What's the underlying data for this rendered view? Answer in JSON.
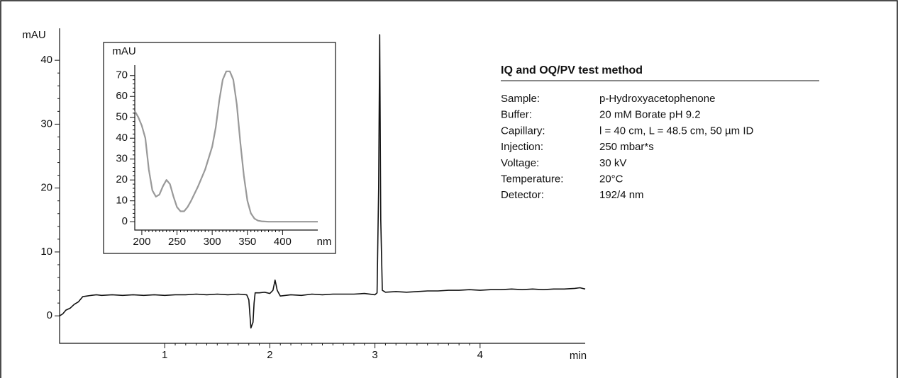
{
  "chart_data": [
    {
      "type": "line",
      "xaxis_label": "min",
      "yaxis_label": "mAU",
      "xlim": [
        0,
        5
      ],
      "xticks": [
        1,
        2,
        3,
        4
      ],
      "ylim": [
        -4.3,
        45
      ],
      "yticks": [
        0,
        10,
        20,
        30,
        40
      ],
      "series": [
        {
          "color": "#111111",
          "x": [
            0,
            0.03,
            0.06,
            0.1,
            0.14,
            0.18,
            0.22,
            0.26,
            0.3,
            0.35,
            0.4,
            0.5,
            0.6,
            0.7,
            0.8,
            0.9,
            1.0,
            1.1,
            1.2,
            1.3,
            1.4,
            1.5,
            1.6,
            1.7,
            1.78,
            1.8,
            1.82,
            1.84,
            1.85,
            1.86,
            1.9,
            1.95,
            2.0,
            2.03,
            2.05,
            2.07,
            2.1,
            2.2,
            2.3,
            2.4,
            2.5,
            2.6,
            2.7,
            2.8,
            2.9,
            3.0,
            3.02,
            3.035,
            3.045,
            3.055,
            3.07,
            3.1,
            3.2,
            3.3,
            3.4,
            3.5,
            3.6,
            3.7,
            3.8,
            3.9,
            4.0,
            4.1,
            4.2,
            4.3,
            4.4,
            4.5,
            4.6,
            4.7,
            4.8,
            4.9,
            4.95,
            5.0
          ],
          "values": [
            0,
            0.3,
            0.9,
            1.2,
            1.8,
            2.2,
            3.0,
            3.1,
            3.2,
            3.3,
            3.2,
            3.3,
            3.2,
            3.3,
            3.2,
            3.3,
            3.2,
            3.3,
            3.3,
            3.4,
            3.3,
            3.4,
            3.3,
            3.4,
            3.3,
            2.5,
            -1.9,
            -1.0,
            2.0,
            3.6,
            3.6,
            3.7,
            3.5,
            4.0,
            5.6,
            4.0,
            3.1,
            3.3,
            3.2,
            3.4,
            3.3,
            3.4,
            3.4,
            3.4,
            3.5,
            3.3,
            3.6,
            20,
            44,
            15,
            4.0,
            3.7,
            3.8,
            3.7,
            3.8,
            3.9,
            3.9,
            4.0,
            4.0,
            4.1,
            4.0,
            4.1,
            4.1,
            4.2,
            4.1,
            4.2,
            4.1,
            4.2,
            4.2,
            4.3,
            4.4,
            4.2
          ]
        }
      ]
    },
    {
      "type": "line",
      "xaxis_label": "nm",
      "yaxis_label": "mAU",
      "xlim": [
        190,
        450
      ],
      "xticks": [
        200,
        250,
        300,
        350,
        400
      ],
      "ylim": [
        -4,
        75
      ],
      "yticks": [
        0,
        10,
        20,
        30,
        40,
        50,
        60,
        70
      ],
      "series": [
        {
          "color": "#999999",
          "x": [
            190,
            195,
            200,
            205,
            210,
            215,
            220,
            225,
            230,
            235,
            240,
            245,
            250,
            255,
            260,
            265,
            270,
            280,
            290,
            300,
            305,
            310,
            315,
            320,
            325,
            330,
            335,
            340,
            345,
            350,
            355,
            360,
            365,
            370,
            380,
            400,
            420,
            450
          ],
          "values": [
            53,
            50,
            46,
            40,
            25,
            15,
            12,
            13,
            17,
            20,
            18,
            12,
            7,
            5,
            5,
            7,
            10,
            17,
            25,
            36,
            45,
            58,
            68,
            72,
            72,
            68,
            56,
            38,
            22,
            10,
            4,
            1.5,
            0.5,
            0.2,
            0,
            0,
            0,
            0
          ]
        }
      ]
    }
  ],
  "method": {
    "title": "IQ and OQ/PV test method",
    "rows": [
      [
        "Sample:",
        "p-Hydroxyacetophenone"
      ],
      [
        "Buffer:",
        "20 mM Borate pH 9.2"
      ],
      [
        "Capillary:",
        "l = 40 cm, L = 48.5 cm, 50 µm ID"
      ],
      [
        "Injection:",
        "250 mbar*s"
      ],
      [
        "Voltage:",
        "30 kV"
      ],
      [
        "Temperature:",
        "20°C"
      ],
      [
        "Detector:",
        "192/4 nm"
      ]
    ]
  }
}
